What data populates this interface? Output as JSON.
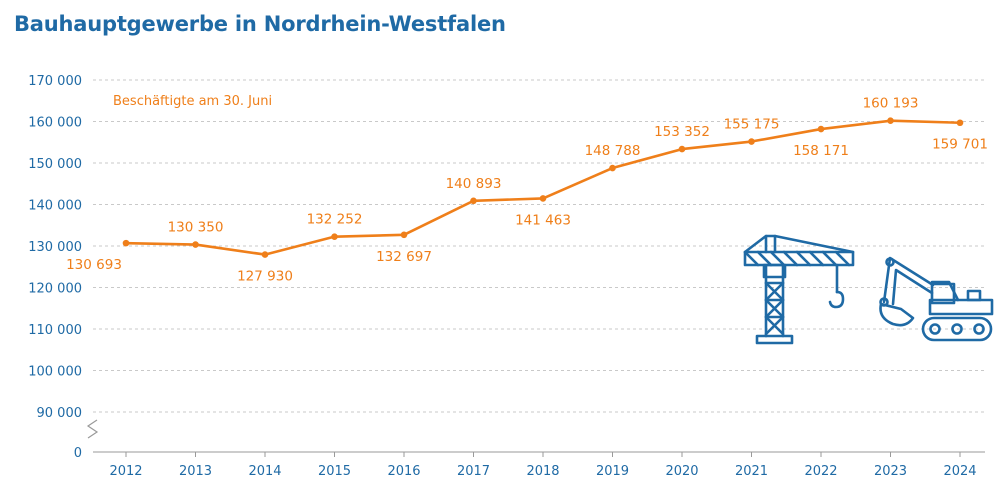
{
  "chart_data": {
    "type": "line",
    "title": "Bauhauptgewerbe in Nordrhein-Westfalen",
    "x": [
      "2012",
      "2013",
      "2014",
      "2015",
      "2016",
      "2017",
      "2018",
      "2019",
      "2020",
      "2021",
      "2022",
      "2023",
      "2024"
    ],
    "series": [
      {
        "name": "Beschäftigte am 30. Juni",
        "values": [
          130693,
          130350,
          127930,
          132252,
          132697,
          140893,
          141463,
          148788,
          153352,
          155175,
          158171,
          160193,
          159701
        ],
        "labels": [
          "130 693",
          "130 350",
          "127 930",
          "132 252",
          "132 697",
          "140 893",
          "141 463",
          "148 788",
          "153 352",
          "155 175",
          "158 171",
          "160 193",
          "159 701"
        ],
        "label_positions": [
          "below",
          "above",
          "below",
          "above",
          "below",
          "above",
          "below",
          "above",
          "above",
          "above",
          "below",
          "above",
          "below"
        ]
      }
    ],
    "y_ticks": [
      {
        "value": 170000,
        "label": "170 000"
      },
      {
        "value": 160000,
        "label": "160 000"
      },
      {
        "value": 150000,
        "label": "150 000"
      },
      {
        "value": 140000,
        "label": "140 000"
      },
      {
        "value": 130000,
        "label": "130 000"
      },
      {
        "value": 120000,
        "label": "120 000"
      },
      {
        "value": 110000,
        "label": "110 000"
      },
      {
        "value": 100000,
        "label": "100 000"
      },
      {
        "value": 90000,
        "label": "90 000"
      },
      {
        "value": 0,
        "label": "0"
      }
    ],
    "axis_break": true,
    "ylim": [
      80000,
      170000
    ],
    "grid": true,
    "colors": {
      "series": "#ef7f1a",
      "axis_text": "#1f6aa5",
      "grid": "#c9c9c9",
      "icons": "#1f6aa5"
    },
    "decorations": [
      "crane-icon",
      "excavator-icon"
    ]
  }
}
